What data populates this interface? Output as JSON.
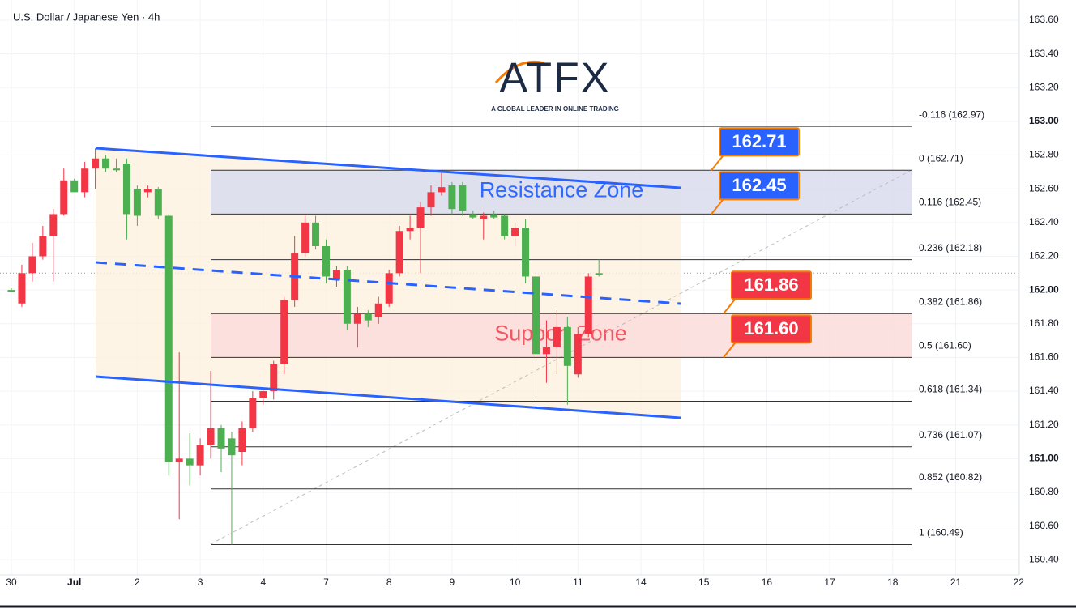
{
  "header": "U.S. Dollar / Japanese Yen · 4h",
  "logo": {
    "brand": "ATFX",
    "tagline": "A GLOBAL LEADER IN ONLINE TRADING"
  },
  "chart_data": {
    "type": "candlestick",
    "up_color": "#f23645",
    "down_color": "#4caf50",
    "xticks": [
      "30",
      "Jul",
      "2",
      "3",
      "4",
      "7",
      "8",
      "9",
      "10",
      "11",
      "14",
      "15",
      "16",
      "17",
      "18",
      "21",
      "22"
    ],
    "ylim": [
      160.31,
      163.72
    ],
    "yticks": [
      {
        "value": 160.4,
        "label": "160.40"
      },
      {
        "value": 160.6,
        "label": "160.60"
      },
      {
        "value": 160.8,
        "label": "160.80"
      },
      {
        "value": 161.0,
        "label": "161.00"
      },
      {
        "value": 161.2,
        "label": "161.20"
      },
      {
        "value": 161.4,
        "label": "161.40"
      },
      {
        "value": 161.6,
        "label": "161.60"
      },
      {
        "value": 161.8,
        "label": "161.80"
      },
      {
        "value": 162.0,
        "label": "162.00"
      },
      {
        "value": 162.2,
        "label": "162.20"
      },
      {
        "value": 162.4,
        "label": "162.40"
      },
      {
        "value": 162.6,
        "label": "162.60"
      },
      {
        "value": 162.8,
        "label": "162.80"
      },
      {
        "value": 163.0,
        "label": "163.00"
      },
      {
        "value": 163.2,
        "label": "163.20"
      },
      {
        "value": 163.4,
        "label": "163.40"
      },
      {
        "value": 163.6,
        "label": "163.60"
      }
    ],
    "candles": [
      {
        "open": 162.0,
        "high": 162.01,
        "low": 161.99,
        "close": 161.99
      },
      {
        "open": 161.92,
        "high": 162.15,
        "low": 161.9,
        "close": 162.1
      },
      {
        "open": 162.1,
        "high": 162.28,
        "low": 162.05,
        "close": 162.2
      },
      {
        "open": 162.2,
        "high": 162.38,
        "low": 162.18,
        "close": 162.32
      },
      {
        "open": 162.32,
        "high": 162.48,
        "low": 162.05,
        "close": 162.45
      },
      {
        "open": 162.45,
        "high": 162.72,
        "low": 162.44,
        "close": 162.65
      },
      {
        "open": 162.65,
        "high": 162.66,
        "low": 162.58,
        "close": 162.58
      },
      {
        "open": 162.58,
        "high": 162.76,
        "low": 162.55,
        "close": 162.72
      },
      {
        "open": 162.72,
        "high": 162.84,
        "low": 162.6,
        "close": 162.78
      },
      {
        "open": 162.78,
        "high": 162.8,
        "low": 162.7,
        "close": 162.72
      },
      {
        "open": 162.72,
        "high": 162.78,
        "low": 162.7,
        "close": 162.71
      },
      {
        "open": 162.75,
        "high": 162.78,
        "low": 162.3,
        "close": 162.45
      },
      {
        "open": 162.6,
        "high": 162.62,
        "low": 162.38,
        "close": 162.44
      },
      {
        "open": 162.58,
        "high": 162.62,
        "low": 162.55,
        "close": 162.6
      },
      {
        "open": 162.6,
        "high": 162.61,
        "low": 162.42,
        "close": 162.44
      },
      {
        "open": 162.44,
        "high": 162.45,
        "low": 160.9,
        "close": 160.98
      },
      {
        "open": 160.98,
        "high": 161.63,
        "low": 160.64,
        "close": 161.0
      },
      {
        "open": 161.0,
        "high": 161.15,
        "low": 160.84,
        "close": 160.96
      },
      {
        "open": 160.96,
        "high": 161.12,
        "low": 160.9,
        "close": 161.08
      },
      {
        "open": 161.08,
        "high": 161.52,
        "low": 161.0,
        "close": 161.18
      },
      {
        "open": 161.18,
        "high": 161.2,
        "low": 160.92,
        "close": 161.06
      },
      {
        "open": 161.12,
        "high": 161.16,
        "low": 160.49,
        "close": 161.02
      },
      {
        "open": 161.04,
        "high": 161.22,
        "low": 160.96,
        "close": 161.18
      },
      {
        "open": 161.18,
        "high": 161.4,
        "low": 161.16,
        "close": 161.36
      },
      {
        "open": 161.36,
        "high": 161.42,
        "low": 161.32,
        "close": 161.4
      },
      {
        "open": 161.4,
        "high": 161.58,
        "low": 161.35,
        "close": 161.56
      },
      {
        "open": 161.56,
        "high": 161.96,
        "low": 161.5,
        "close": 161.94
      },
      {
        "open": 161.94,
        "high": 162.32,
        "low": 161.9,
        "close": 162.22
      },
      {
        "open": 162.22,
        "high": 162.44,
        "low": 162.2,
        "close": 162.4
      },
      {
        "open": 162.4,
        "high": 162.44,
        "low": 162.24,
        "close": 162.26
      },
      {
        "open": 162.26,
        "high": 162.3,
        "low": 162.04,
        "close": 162.08
      },
      {
        "open": 162.06,
        "high": 162.14,
        "low": 162.02,
        "close": 162.12
      },
      {
        "open": 162.12,
        "high": 162.14,
        "low": 161.76,
        "close": 161.8
      },
      {
        "open": 161.8,
        "high": 161.9,
        "low": 161.66,
        "close": 161.86
      },
      {
        "open": 161.86,
        "high": 161.88,
        "low": 161.78,
        "close": 161.82
      },
      {
        "open": 161.84,
        "high": 161.96,
        "low": 161.8,
        "close": 161.92
      },
      {
        "open": 161.92,
        "high": 162.12,
        "low": 161.9,
        "close": 162.1
      },
      {
        "open": 162.1,
        "high": 162.38,
        "low": 162.08,
        "close": 162.35
      },
      {
        "open": 162.35,
        "high": 162.44,
        "low": 162.3,
        "close": 162.37
      },
      {
        "open": 162.37,
        "high": 162.52,
        "low": 162.1,
        "close": 162.49
      },
      {
        "open": 162.49,
        "high": 162.62,
        "low": 162.44,
        "close": 162.58
      },
      {
        "open": 162.58,
        "high": 162.71,
        "low": 162.56,
        "close": 162.61
      },
      {
        "open": 162.62,
        "high": 162.64,
        "low": 162.45,
        "close": 162.48
      },
      {
        "open": 162.62,
        "high": 162.64,
        "low": 162.44,
        "close": 162.47
      },
      {
        "open": 162.45,
        "high": 162.47,
        "low": 162.42,
        "close": 162.43
      },
      {
        "open": 162.42,
        "high": 162.46,
        "low": 162.3,
        "close": 162.44
      },
      {
        "open": 162.45,
        "high": 162.47,
        "low": 162.42,
        "close": 162.43
      },
      {
        "open": 162.44,
        "high": 162.45,
        "low": 162.3,
        "close": 162.32
      },
      {
        "open": 162.32,
        "high": 162.4,
        "low": 162.26,
        "close": 162.37
      },
      {
        "open": 162.37,
        "high": 162.42,
        "low": 162.04,
        "close": 162.08
      },
      {
        "open": 162.08,
        "high": 162.1,
        "low": 161.3,
        "close": 161.62
      },
      {
        "open": 161.62,
        "high": 161.82,
        "low": 161.45,
        "close": 161.66
      },
      {
        "open": 161.66,
        "high": 161.88,
        "low": 161.5,
        "close": 161.78
      },
      {
        "open": 161.78,
        "high": 161.84,
        "low": 161.32,
        "close": 161.55
      },
      {
        "open": 161.5,
        "high": 161.78,
        "low": 161.48,
        "close": 161.74
      },
      {
        "open": 161.74,
        "high": 162.1,
        "low": 161.72,
        "close": 162.08
      },
      {
        "open": 162.1,
        "high": 162.18,
        "low": 162.08,
        "close": 162.09
      }
    ],
    "last_price": 162.1,
    "fib_levels": [
      {
        "value": 162.97,
        "label": "-0.116 (162.97)"
      },
      {
        "value": 162.71,
        "label": "0 (162.71)"
      },
      {
        "value": 162.45,
        "label": "0.116 (162.45)"
      },
      {
        "value": 162.18,
        "label": "0.236 (162.18)"
      },
      {
        "value": 161.86,
        "label": "0.382 (161.86)"
      },
      {
        "value": 161.6,
        "label": "0.5 (161.60)"
      },
      {
        "value": 161.34,
        "label": "0.618 (161.34)"
      },
      {
        "value": 161.07,
        "label": "0.736 (161.07)"
      },
      {
        "value": 160.82,
        "label": "0.852 (160.82)"
      },
      {
        "value": 160.49,
        "label": "1 (160.49)"
      }
    ],
    "zones": [
      {
        "name": "Resistance Zone",
        "color": "#2962ff",
        "fill": "#d9dcef"
      },
      {
        "name": "Support Zone",
        "color": "#f23645",
        "fill": "#fbdcdc"
      }
    ],
    "price_tags": [
      {
        "value": 162.71,
        "color": "#2962ff"
      },
      {
        "value": 162.45,
        "color": "#2962ff"
      },
      {
        "value": 161.86,
        "color": "#f23645"
      },
      {
        "value": 161.6,
        "label": "161.60",
        "color": "#f23645"
      }
    ]
  }
}
